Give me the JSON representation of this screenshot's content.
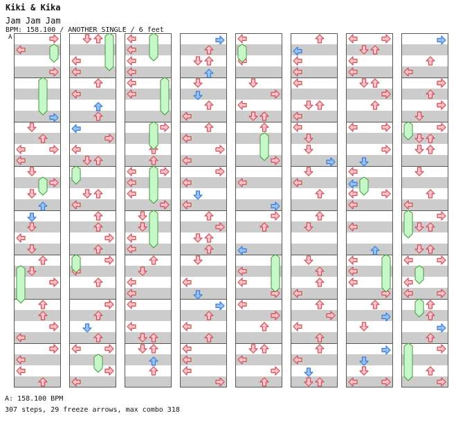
{
  "header": {
    "artist": "Kiki & Kika",
    "title": "Jam Jam Jam",
    "info": "BPM: 158.100 / ANOTHER SINGLE / 6 feet"
  },
  "chart": {
    "section_marker": "A",
    "columns": 8,
    "measures_per_column": 8,
    "colors": {
      "red_fill": "#ffc4c8",
      "red_stroke": "#d04a5a",
      "blue_fill": "#8ec4f8",
      "blue_stroke": "#3f78d0",
      "freeze_fill": "#c8f8c8",
      "freeze_stroke": "#3f9a3f",
      "stripe": "#cccccc",
      "border": "#555555"
    },
    "icons": [
      "left-arrow-icon",
      "down-arrow-icon",
      "up-arrow-icon",
      "right-arrow-icon",
      "freeze-arrow-icon"
    ]
  },
  "footer": {
    "bpm_line": "A: 158.100 BPM",
    "stats_line": "307 steps, 29 freeze arrows, max combo 318"
  }
}
